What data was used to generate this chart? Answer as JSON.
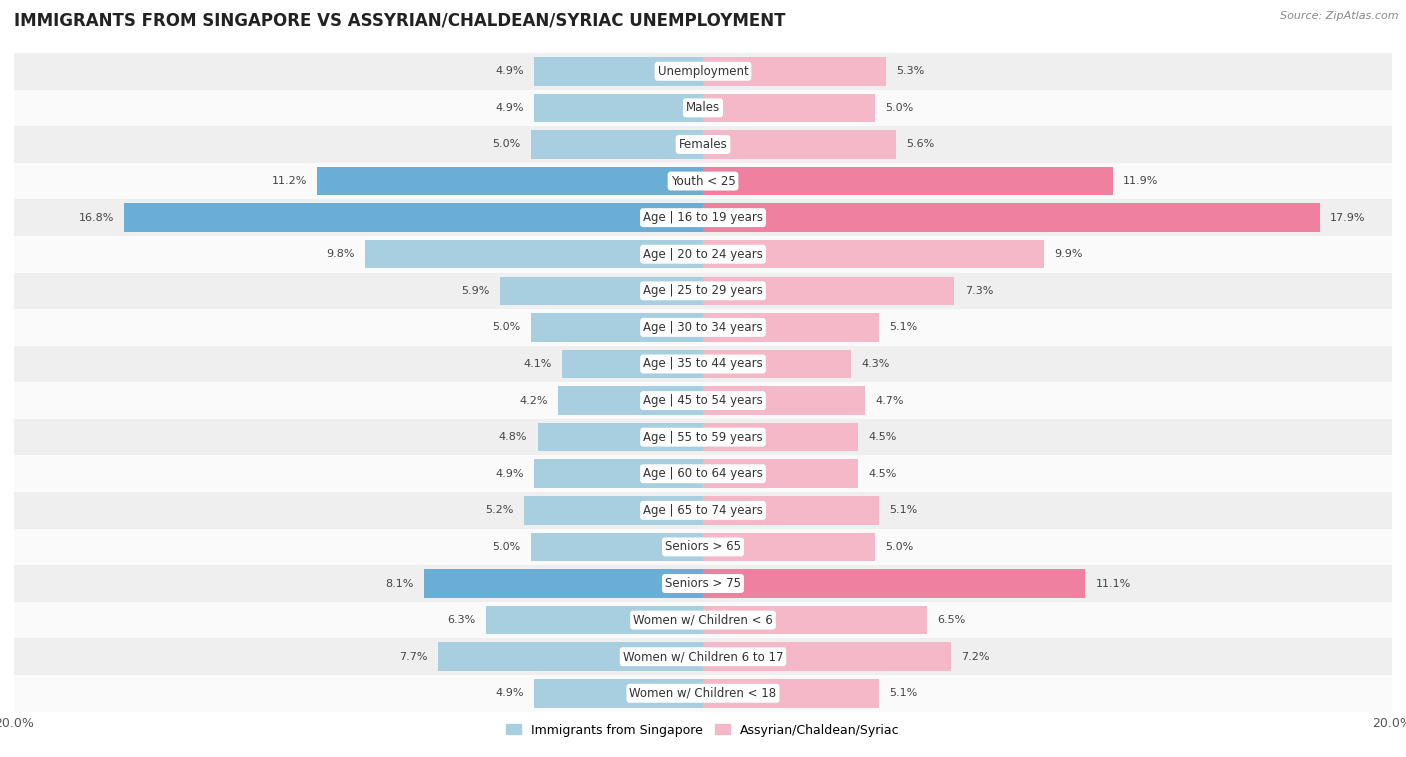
{
  "title": "IMMIGRANTS FROM SINGAPORE VS ASSYRIAN/CHALDEAN/SYRIAC UNEMPLOYMENT",
  "source": "Source: ZipAtlas.com",
  "categories": [
    "Unemployment",
    "Males",
    "Females",
    "Youth < 25",
    "Age | 16 to 19 years",
    "Age | 20 to 24 years",
    "Age | 25 to 29 years",
    "Age | 30 to 34 years",
    "Age | 35 to 44 years",
    "Age | 45 to 54 years",
    "Age | 55 to 59 years",
    "Age | 60 to 64 years",
    "Age | 65 to 74 years",
    "Seniors > 65",
    "Seniors > 75",
    "Women w/ Children < 6",
    "Women w/ Children 6 to 17",
    "Women w/ Children < 18"
  ],
  "left_values": [
    4.9,
    4.9,
    5.0,
    11.2,
    16.8,
    9.8,
    5.9,
    5.0,
    4.1,
    4.2,
    4.8,
    4.9,
    5.2,
    5.0,
    8.1,
    6.3,
    7.7,
    4.9
  ],
  "right_values": [
    5.3,
    5.0,
    5.6,
    11.9,
    17.9,
    9.9,
    7.3,
    5.1,
    4.3,
    4.7,
    4.5,
    4.5,
    5.1,
    5.0,
    11.1,
    6.5,
    7.2,
    5.1
  ],
  "left_color_normal": "#a8cfe0",
  "right_color_normal": "#f5b8c8",
  "left_color_highlight": "#6aadd5",
  "right_color_highlight": "#f080a0",
  "bar_height": 0.78,
  "xlim": 20.0,
  "row_bg_even": "#efefef",
  "row_bg_odd": "#fafafa",
  "legend_left": "Immigrants from Singapore",
  "legend_right": "Assyrian/Chaldean/Syriac",
  "title_fontsize": 12,
  "source_fontsize": 8,
  "label_fontsize": 8.5,
  "value_fontsize": 8,
  "highlight_rows": [
    "Youth < 25",
    "Age | 16 to 19 years",
    "Seniors > 75"
  ]
}
